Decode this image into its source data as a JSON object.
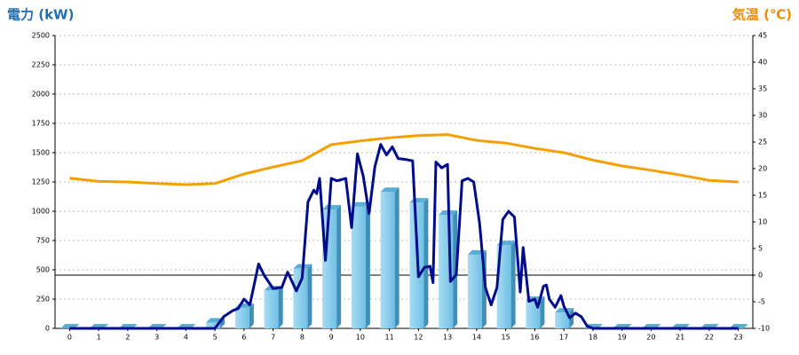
{
  "chart_data": {
    "type": "bar",
    "title": "電力 (kW)",
    "y2_title": "気温 (℃)",
    "categories": [
      0,
      1,
      2,
      3,
      4,
      5,
      6,
      7,
      8,
      9,
      10,
      11,
      12,
      13,
      14,
      15,
      16,
      17,
      18,
      19,
      20,
      21,
      22,
      23
    ],
    "ylim": [
      0,
      2500
    ],
    "yticks": [
      0,
      250,
      500,
      750,
      1000,
      1250,
      1500,
      1750,
      2000,
      2250,
      2500
    ],
    "y2lim": [
      -10,
      45
    ],
    "y2ticks": [
      -10,
      -5,
      0,
      5,
      10,
      15,
      20,
      25,
      30,
      35,
      40,
      45
    ],
    "grid": true,
    "series": [
      {
        "type": "bar",
        "color": "#87ceeb",
        "values": [
          0,
          0,
          0,
          0,
          0,
          50,
          175,
          325,
          510,
          1015,
          1040,
          1165,
          1075,
          970,
          630,
          710,
          235,
          135,
          0,
          0,
          0,
          0,
          0,
          0
        ]
      },
      {
        "type": "line",
        "color": "#000c8c",
        "x": [
          0,
          5,
          5.3,
          5.6,
          5.8,
          6,
          6.2,
          6.5,
          6.7,
          7,
          7.3,
          7.5,
          7.8,
          8,
          8.2,
          8.4,
          8.5,
          8.6,
          8.8,
          9,
          9.2,
          9.5,
          9.7,
          9.9,
          10.1,
          10.3,
          10.5,
          10.7,
          10.9,
          11.1,
          11.3,
          11.6,
          11.8,
          12,
          12.2,
          12.4,
          12.5,
          12.6,
          12.8,
          13,
          13.1,
          13.3,
          13.5,
          13.7,
          13.9,
          14.1,
          14.3,
          14.5,
          14.7,
          14.9,
          15.1,
          15.3,
          15.5,
          15.6,
          15.8,
          16,
          16.1,
          16.3,
          16.4,
          16.5,
          16.7,
          16.9,
          17,
          17.2,
          17.4,
          17.6,
          17.8,
          18,
          23
        ],
        "values": [
          0,
          0,
          100,
          150,
          170,
          250,
          200,
          550,
          450,
          340,
          350,
          480,
          320,
          430,
          1080,
          1180,
          1150,
          1280,
          580,
          1280,
          1260,
          1280,
          860,
          1490,
          1300,
          980,
          1380,
          1570,
          1480,
          1550,
          1450,
          1440,
          1430,
          440,
          520,
          530,
          390,
          1420,
          1370,
          1400,
          400,
          460,
          1260,
          1280,
          1250,
          900,
          350,
          200,
          350,
          930,
          1000,
          950,
          310,
          690,
          230,
          250,
          180,
          360,
          370,
          250,
          180,
          280,
          190,
          90,
          130,
          100,
          20,
          0,
          0
        ]
      },
      {
        "type": "line",
        "axis": "y2",
        "color": "#f5a000",
        "values": [
          18.2,
          17.6,
          17.5,
          17.2,
          17,
          17.2,
          19,
          20.3,
          21.5,
          24.5,
          25.2,
          25.8,
          26.2,
          26.4,
          25.3,
          24.8,
          23.8,
          23,
          21.6,
          20.5,
          19.7,
          18.8,
          17.8,
          17.5
        ]
      }
    ],
    "zero_line_axis": "y2",
    "zero_line_value": 0
  }
}
